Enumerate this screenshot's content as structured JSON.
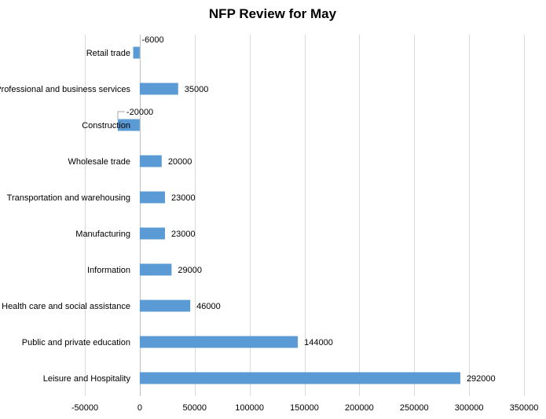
{
  "chart_data": {
    "type": "bar",
    "orientation": "horizontal",
    "title": "NFP Review for May",
    "xlabel": "",
    "ylabel": "",
    "xlim": [
      -50000,
      350000
    ],
    "xticks": [
      -50000,
      0,
      50000,
      100000,
      150000,
      200000,
      250000,
      300000,
      350000
    ],
    "grid": true,
    "legend": "none",
    "bar_color": "#5b9bd5",
    "categories": [
      "Retail trade",
      "Professional and business services",
      "Construction",
      "Wholesale trade",
      "Transportation and warehousing",
      "Manufacturing",
      "Information",
      "Health care and social assistance",
      "Public and private education",
      "Leisure and Hospitality"
    ],
    "values": [
      -6000,
      35000,
      -20000,
      20000,
      23000,
      23000,
      29000,
      46000,
      144000,
      292000
    ]
  }
}
